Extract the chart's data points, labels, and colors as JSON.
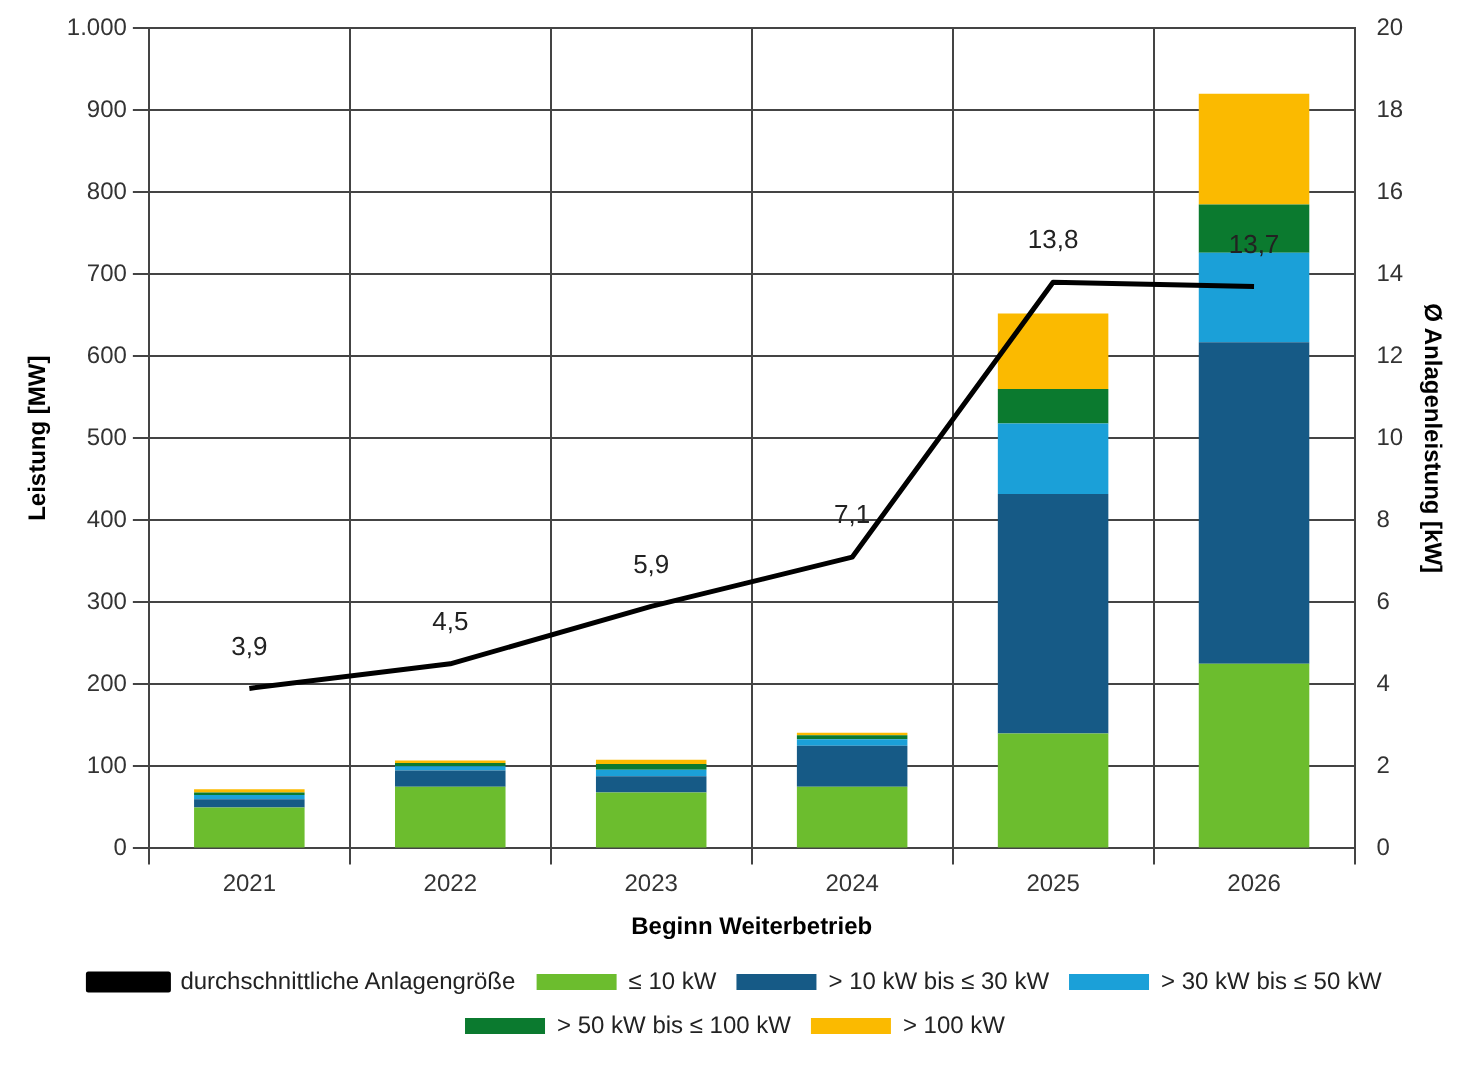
{
  "chart_data": {
    "type": "bar",
    "stacked": true,
    "xlabel": "Beginn Weiterbetrieb",
    "ylabel": "Leistung [MW]",
    "y2label": "Ø Anlagenleistung [kW]",
    "categories": [
      "2021",
      "2022",
      "2023",
      "2024",
      "2025",
      "2026"
    ],
    "series": [
      {
        "name": "≤ 10 kW",
        "color": "#6cbd2e",
        "values": [
          50,
          75,
          68,
          75,
          140,
          225
        ]
      },
      {
        "name": "> 10 kW bis ≤ 30 kW",
        "color": "#165a86",
        "values": [
          10,
          20,
          20,
          50,
          292,
          392
        ]
      },
      {
        "name": "> 30 kW bis ≤ 50 kW",
        "color": "#1ba0d8",
        "values": [
          5,
          5,
          8,
          8,
          86,
          109
        ]
      },
      {
        "name": "> 50 kW bis ≤ 100 kW",
        "color": "#0b7a2f",
        "values": [
          3,
          4,
          7,
          5,
          42,
          59
        ]
      },
      {
        "name": "> 100 kW",
        "color": "#fbba00",
        "values": [
          4,
          3,
          5,
          3,
          92,
          135
        ]
      },
      {
        "name": "durchschnittliche Anlagengröße",
        "type": "line",
        "axis": "y2",
        "color": "#000000",
        "values": [
          3.9,
          4.5,
          5.9,
          7.1,
          13.8,
          13.7
        ],
        "value_labels": [
          "3,9",
          "4,5",
          "5,9",
          "7,1",
          "13,8",
          "13,7"
        ]
      }
    ],
    "ylim": [
      0,
      1000
    ],
    "yticks": [
      0,
      100,
      200,
      300,
      400,
      500,
      600,
      700,
      800,
      900,
      {
        "value": 1000,
        "label": "1.000"
      }
    ],
    "y2lim": [
      0,
      20
    ],
    "y2ticks": [
      0,
      2,
      4,
      6,
      8,
      10,
      12,
      14,
      16,
      18,
      20
    ],
    "grid": true,
    "legend": "bottom",
    "marker": "none"
  }
}
